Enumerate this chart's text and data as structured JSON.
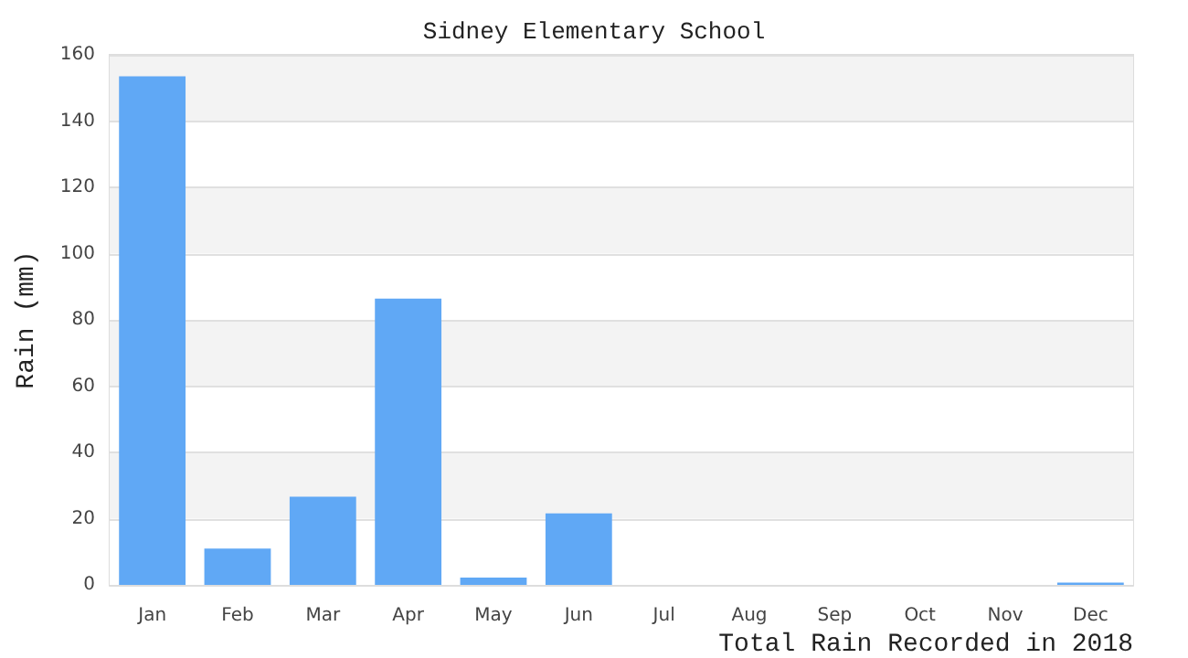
{
  "chart_data": {
    "type": "bar",
    "title": "Sidney Elementary School",
    "xlabel": "Total Rain Recorded in 2018",
    "ylabel": "Rain (mm)",
    "categories": [
      "Jan",
      "Feb",
      "Mar",
      "Apr",
      "May",
      "Jun",
      "Jul",
      "Aug",
      "Sep",
      "Oct",
      "Nov",
      "Dec"
    ],
    "values": [
      153.5,
      11,
      26.6,
      86.4,
      2.2,
      21.6,
      0,
      0,
      0,
      0,
      0,
      0.7
    ],
    "color": "#60a8f5",
    "ylim": [
      0,
      160
    ],
    "yticks": [
      0,
      20,
      40,
      60,
      80,
      100,
      120,
      140,
      160
    ],
    "grid": true
  }
}
